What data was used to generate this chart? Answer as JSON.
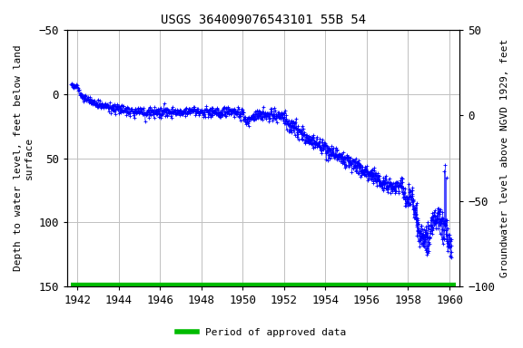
{
  "title": "USGS 364009076543101 55B 54",
  "ylabel_left": "Depth to water level, feet below land\nsurface",
  "ylabel_right": "Groundwater level above NGVD 1929, feet",
  "ylim_left": [
    150,
    -50
  ],
  "ylim_right": [
    -100,
    50
  ],
  "xlim": [
    1941.5,
    1960.5
  ],
  "xticks": [
    1942,
    1944,
    1946,
    1948,
    1950,
    1952,
    1954,
    1956,
    1958,
    1960
  ],
  "yticks_left": [
    -50,
    0,
    50,
    100,
    150
  ],
  "yticks_right": [
    50,
    0,
    -50,
    -100
  ],
  "legend_label": "Period of approved data",
  "legend_color": "#00bb00",
  "bar_y": 150,
  "bar_xstart": 1941.7,
  "bar_xend": 1960.3,
  "bg_color": "#ffffff",
  "grid_color": "#c0c0c0",
  "data_color": "#0000ff",
  "title_fontsize": 10,
  "label_fontsize": 8,
  "tick_fontsize": 9
}
